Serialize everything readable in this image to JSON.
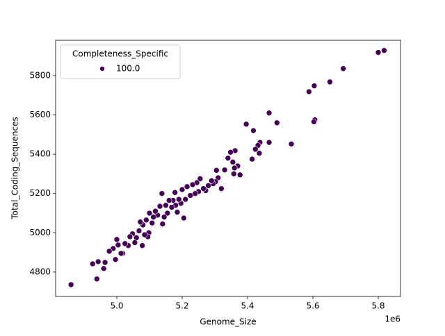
{
  "chart_data": {
    "type": "scatter",
    "x_label": "Genome_Size",
    "y_label": "Total_Coding_Sequences",
    "x_offset_label": "1e6",
    "legend_title": "Completeness_Specific",
    "legend": "upper left",
    "xlim": [
      4.8128,
      5.868
    ],
    "ylim": [
      4676,
      5980
    ],
    "xticks": [
      {
        "value": 5,
        "label": "5.0"
      },
      5.2,
      5.4,
      5.6,
      5.8
    ],
    "yticks": [
      4800,
      5000,
      5200,
      5400,
      5600,
      5800
    ],
    "series": [
      {
        "name": "100.0",
        "color": "#440154",
        "x": [
          5.8,
          5.818,
          5.693,
          5.652,
          5.604,
          5.588,
          5.606,
          5.603,
          5.534,
          5.49,
          5.466,
          5.396,
          5.418,
          5.466,
          5.438,
          5.432,
          5.424,
          5.436,
          5.414,
          5.377,
          5.37,
          5.36,
          5.358,
          5.355,
          5.362,
          5.348,
          5.34,
          5.33,
          5.32,
          5.31,
          5.305,
          5.302,
          5.295,
          5.29,
          5.28,
          5.272,
          5.265,
          5.255,
          5.25,
          5.245,
          5.24,
          5.232,
          5.225,
          5.215,
          5.21,
          5.205,
          5.2,
          5.196,
          5.19,
          5.185,
          5.18,
          5.178,
          5.172,
          5.168,
          5.16,
          5.155,
          5.15,
          5.145,
          5.14,
          5.138,
          5.132,
          5.125,
          5.118,
          5.112,
          5.108,
          5.1,
          5.098,
          5.095,
          5.09,
          5.085,
          5.08,
          5.078,
          5.072,
          5.068,
          5.06,
          5.055,
          5.048,
          5.04,
          5.035,
          5.025,
          5.018,
          5.013,
          5.004,
          5.0,
          4.996,
          4.989,
          4.977,
          4.964,
          4.96,
          4.943,
          4.939,
          4.926,
          4.86
        ],
        "values": [
          5918,
          5928,
          5836,
          5768,
          5748,
          5718,
          5575,
          5565,
          5452,
          5560,
          5610,
          5553,
          5520,
          5460,
          5460,
          5445,
          5425,
          5405,
          5375,
          5295,
          5340,
          5330,
          5300,
          5360,
          5418,
          5410,
          5380,
          5320,
          5225,
          5280,
          5318,
          5260,
          5250,
          5265,
          5240,
          5215,
          5225,
          5275,
          5210,
          5255,
          5200,
          5245,
          5190,
          5235,
          5170,
          5075,
          5220,
          5150,
          5170,
          5105,
          5140,
          5205,
          5165,
          5130,
          5165,
          5100,
          5140,
          5080,
          5045,
          5200,
          5135,
          5090,
          5110,
          5080,
          5050,
          5100,
          5000,
          4980,
          5065,
          4990,
          5040,
          4935,
          5055,
          5010,
          4975,
          4950,
          4995,
          4980,
          4935,
          4945,
          4895,
          4895,
          4938,
          4966,
          4864,
          4920,
          4906,
          4849,
          4818,
          4853,
          4765,
          4842,
          4736
        ]
      }
    ]
  }
}
